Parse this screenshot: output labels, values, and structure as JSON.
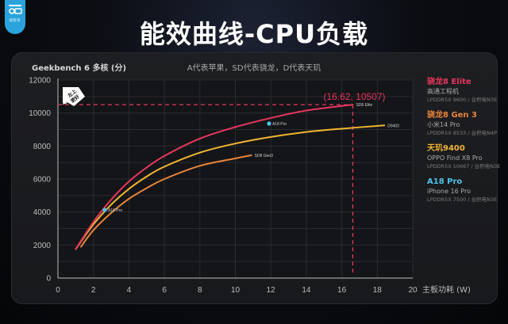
{
  "header": {
    "title": "能效曲线-CPU负载",
    "logo_text": "极客湾"
  },
  "chart_meta": {
    "y_axis_label": "Geekbench 6  多核 (分)",
    "subtitle": "A代表苹果，SD代表骁龙，D代表天玑",
    "x_axis_label": "主板功耗 (W)",
    "badge_text": "左上更好",
    "highlight_point_label": "(16.62, 10507)"
  },
  "legend": [
    {
      "name": "骁龙8 Elite",
      "device": "高通工程机",
      "memory": "LPDDR5X 9600 / 台积电N3E",
      "color": "#e8365d"
    },
    {
      "name": "骁龙8 Gen 3",
      "device": "小米14 Pro",
      "memory": "LPDDR5X 8533 / 台积电N4P",
      "color": "#e8843a"
    },
    {
      "name": "天玑9400",
      "device": "OPPO Find X8 Pro",
      "memory": "LPDDR5X 10667 / 台积电N3E",
      "color": "#f2b632"
    },
    {
      "name": "A18 Pro",
      "device": "iPhone 16 Pro",
      "memory": "LPDDR5X 7500 / 台积电N3E",
      "color": "#4ec3ea"
    }
  ],
  "chart_data": {
    "type": "line",
    "title": "能效曲线-CPU负载",
    "subtitle": "A代表苹果，SD代表骁龙，D代表天玑",
    "xlabel": "主板功耗 (W)",
    "ylabel": "Geekbench 6  多核 (分)",
    "xlim": [
      0,
      20
    ],
    "ylim": [
      0,
      12000
    ],
    "x_ticks": [
      0,
      2,
      4,
      6,
      8,
      10,
      12,
      14,
      16,
      18,
      20
    ],
    "y_ticks": [
      0,
      2000,
      4000,
      6000,
      8000,
      10000,
      12000
    ],
    "grid": true,
    "legend_position": "right",
    "series": [
      {
        "name": "SD8 Elite",
        "color": "#e8365d",
        "type": "curve",
        "points": [
          [
            1.0,
            1750
          ],
          [
            2.0,
            3400
          ],
          [
            3.0,
            4750
          ],
          [
            4.0,
            5850
          ],
          [
            5.0,
            6700
          ],
          [
            6.0,
            7400
          ],
          [
            8.0,
            8450
          ],
          [
            10.0,
            9150
          ],
          [
            12.0,
            9700
          ],
          [
            14.0,
            10150
          ],
          [
            16.62,
            10507
          ]
        ]
      },
      {
        "name": "D9400",
        "color": "#f2b632",
        "type": "curve",
        "points": [
          [
            1.0,
            1750
          ],
          [
            2.0,
            3250
          ],
          [
            3.0,
            4450
          ],
          [
            4.0,
            5400
          ],
          [
            5.0,
            6150
          ],
          [
            6.0,
            6750
          ],
          [
            8.0,
            7600
          ],
          [
            10.0,
            8150
          ],
          [
            12.0,
            8550
          ],
          [
            14.0,
            8850
          ],
          [
            16.0,
            9050
          ],
          [
            18.4,
            9250
          ]
        ]
      },
      {
        "name": "SD8 Gen3",
        "color": "#e8843a",
        "type": "curve",
        "points": [
          [
            1.3,
            1900
          ],
          [
            2.0,
            2900
          ],
          [
            3.0,
            3950
          ],
          [
            4.0,
            4800
          ],
          [
            5.0,
            5450
          ],
          [
            6.0,
            6000
          ],
          [
            8.0,
            6800
          ],
          [
            10.0,
            7250
          ],
          [
            10.9,
            7440
          ]
        ]
      },
      {
        "name": "A18 Pro",
        "color": "#4ec3ea",
        "type": "scatter",
        "points": [
          [
            2.64,
            4130
          ],
          [
            11.9,
            9360
          ]
        ]
      }
    ],
    "annotations": [
      {
        "text": "(16.62, 10507)",
        "x": 16.62,
        "y": 10507,
        "color": "#e8365d",
        "guide_lines": "dashed"
      },
      {
        "text": "左上更好",
        "position": "top-left"
      },
      {
        "text": "SD8 Elite",
        "x": 16.62,
        "y": 10507
      },
      {
        "text": "D9400",
        "x": 18.4,
        "y": 9250
      },
      {
        "text": "SD8 Gen3",
        "x": 10.9,
        "y": 7440
      },
      {
        "text": "A18 Pro",
        "x": 2.64,
        "y": 4130
      },
      {
        "text": "A18 Pro",
        "x": 11.9,
        "y": 9360
      }
    ]
  }
}
